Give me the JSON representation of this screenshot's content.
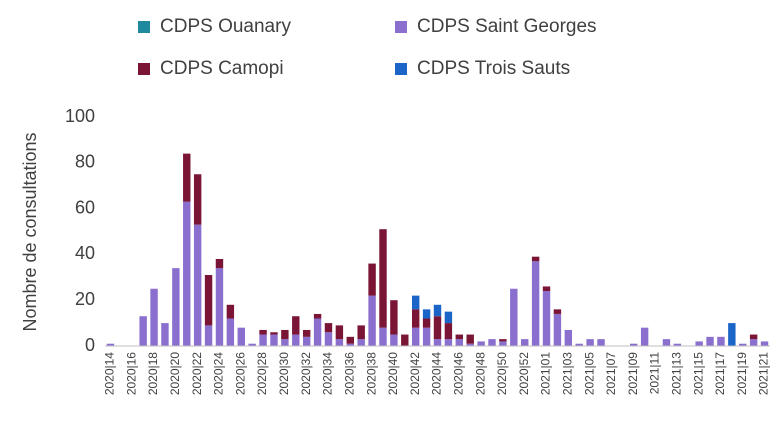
{
  "chart_data": {
    "type": "stacked_bar",
    "y_label": "Nombre de consultations",
    "categories": [
      "2020|14",
      null,
      "2020|16",
      null,
      "2020|18",
      null,
      "2020|20",
      null,
      "2020|22",
      null,
      "2020|24",
      null,
      "2020|26",
      null,
      "2020|28",
      null,
      "2020|30",
      null,
      "2020|32",
      null,
      "2020|34",
      null,
      "2020|36",
      null,
      "2020|38",
      null,
      "2020|40",
      null,
      "2020|42",
      null,
      "2020|44",
      null,
      "2020|46",
      null,
      "2020|48",
      null,
      "2020|50",
      null,
      "2020|52",
      null,
      "2021|01",
      null,
      "2021|03",
      null,
      "2021|05",
      null,
      "2021|07",
      null,
      "2021|09",
      null,
      "2021|11",
      null,
      "2021|13",
      null,
      "2021|15",
      null,
      "2021|17",
      null,
      "2021|19",
      null,
      "2021|21"
    ],
    "series": [
      {
        "name": "CDPS Ouanary",
        "color": "#1f8a9e",
        "values": [
          0,
          0,
          0,
          0,
          0,
          0,
          0,
          0,
          0,
          0,
          0,
          0,
          0,
          0,
          0,
          0,
          0,
          0,
          0,
          0,
          0,
          0,
          0,
          0,
          0,
          0,
          0,
          0,
          0,
          0,
          0,
          0,
          0,
          0,
          0,
          0,
          0,
          0,
          0,
          0,
          0,
          0,
          0,
          0,
          0,
          0,
          0,
          0,
          0,
          0,
          0,
          0,
          0,
          0,
          0,
          0,
          0,
          0,
          0,
          0,
          0
        ]
      },
      {
        "name": "CDPS Saint Georges",
        "color": "#8a6fcf",
        "values": [
          1,
          0,
          0,
          13,
          25,
          10,
          34,
          63,
          53,
          9,
          34,
          12,
          8,
          1,
          5,
          5,
          3,
          5,
          4,
          12,
          6,
          3,
          1,
          3,
          22,
          8,
          5,
          0,
          8,
          8,
          3,
          3,
          3,
          1,
          2,
          3,
          2,
          25,
          3,
          37,
          24,
          14,
          7,
          1,
          3,
          3,
          0,
          0,
          1,
          8,
          0,
          3,
          1,
          0,
          2,
          4,
          4,
          0,
          1,
          3,
          2
        ]
      },
      {
        "name": "CDPS Camopi",
        "color": "#7b1535",
        "values": [
          0,
          0,
          0,
          0,
          0,
          0,
          0,
          21,
          22,
          22,
          4,
          6,
          0,
          0,
          2,
          1,
          4,
          8,
          3,
          2,
          4,
          6,
          3,
          6,
          14,
          43,
          15,
          5,
          8,
          4,
          10,
          7,
          2,
          4,
          0,
          0,
          1,
          0,
          0,
          2,
          2,
          2,
          0,
          0,
          0,
          0,
          0,
          0,
          0,
          0,
          0,
          0,
          0,
          0,
          0,
          0,
          0,
          0,
          0,
          2,
          0
        ]
      },
      {
        "name": "CDPS Trois Sauts",
        "color": "#1b64c8",
        "values": [
          0,
          0,
          0,
          0,
          0,
          0,
          0,
          0,
          0,
          0,
          0,
          0,
          0,
          0,
          0,
          0,
          0,
          0,
          0,
          0,
          0,
          0,
          0,
          0,
          0,
          0,
          0,
          0,
          6,
          4,
          5,
          5,
          0,
          0,
          0,
          0,
          0,
          0,
          0,
          0,
          0,
          0,
          0,
          0,
          0,
          0,
          0,
          0,
          0,
          0,
          0,
          0,
          0,
          0,
          0,
          0,
          0,
          10,
          0,
          0,
          0
        ]
      }
    ],
    "ylim": [
      0,
      100
    ],
    "yticks": [
      0,
      20,
      40,
      60,
      80,
      100
    ],
    "grid": false
  }
}
